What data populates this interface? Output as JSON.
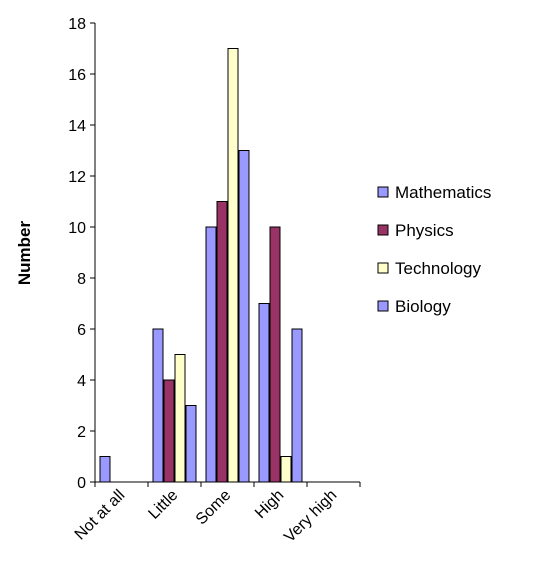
{
  "chart_data": {
    "type": "bar",
    "title": "",
    "xlabel": "",
    "ylabel": "Number",
    "ylim": [
      0,
      18
    ],
    "y_ticks": [
      0,
      2,
      4,
      6,
      8,
      10,
      12,
      14,
      16,
      18
    ],
    "grid": false,
    "legend_position": "right",
    "categories": [
      "Not at all",
      "Little",
      "Some",
      "High",
      "Very high"
    ],
    "series": [
      {
        "name": "Mathematics",
        "color": "#9999ff",
        "values": [
          1,
          6,
          10,
          7,
          0
        ]
      },
      {
        "name": "Physics",
        "color": "#993366",
        "values": [
          0,
          4,
          11,
          10,
          0
        ]
      },
      {
        "name": "Technology",
        "color": "#ffffcc",
        "values": [
          0,
          5,
          17,
          1,
          0
        ]
      },
      {
        "name": "Biology",
        "color": "#9999ff",
        "values": [
          0,
          3,
          13,
          6,
          0
        ]
      }
    ]
  }
}
